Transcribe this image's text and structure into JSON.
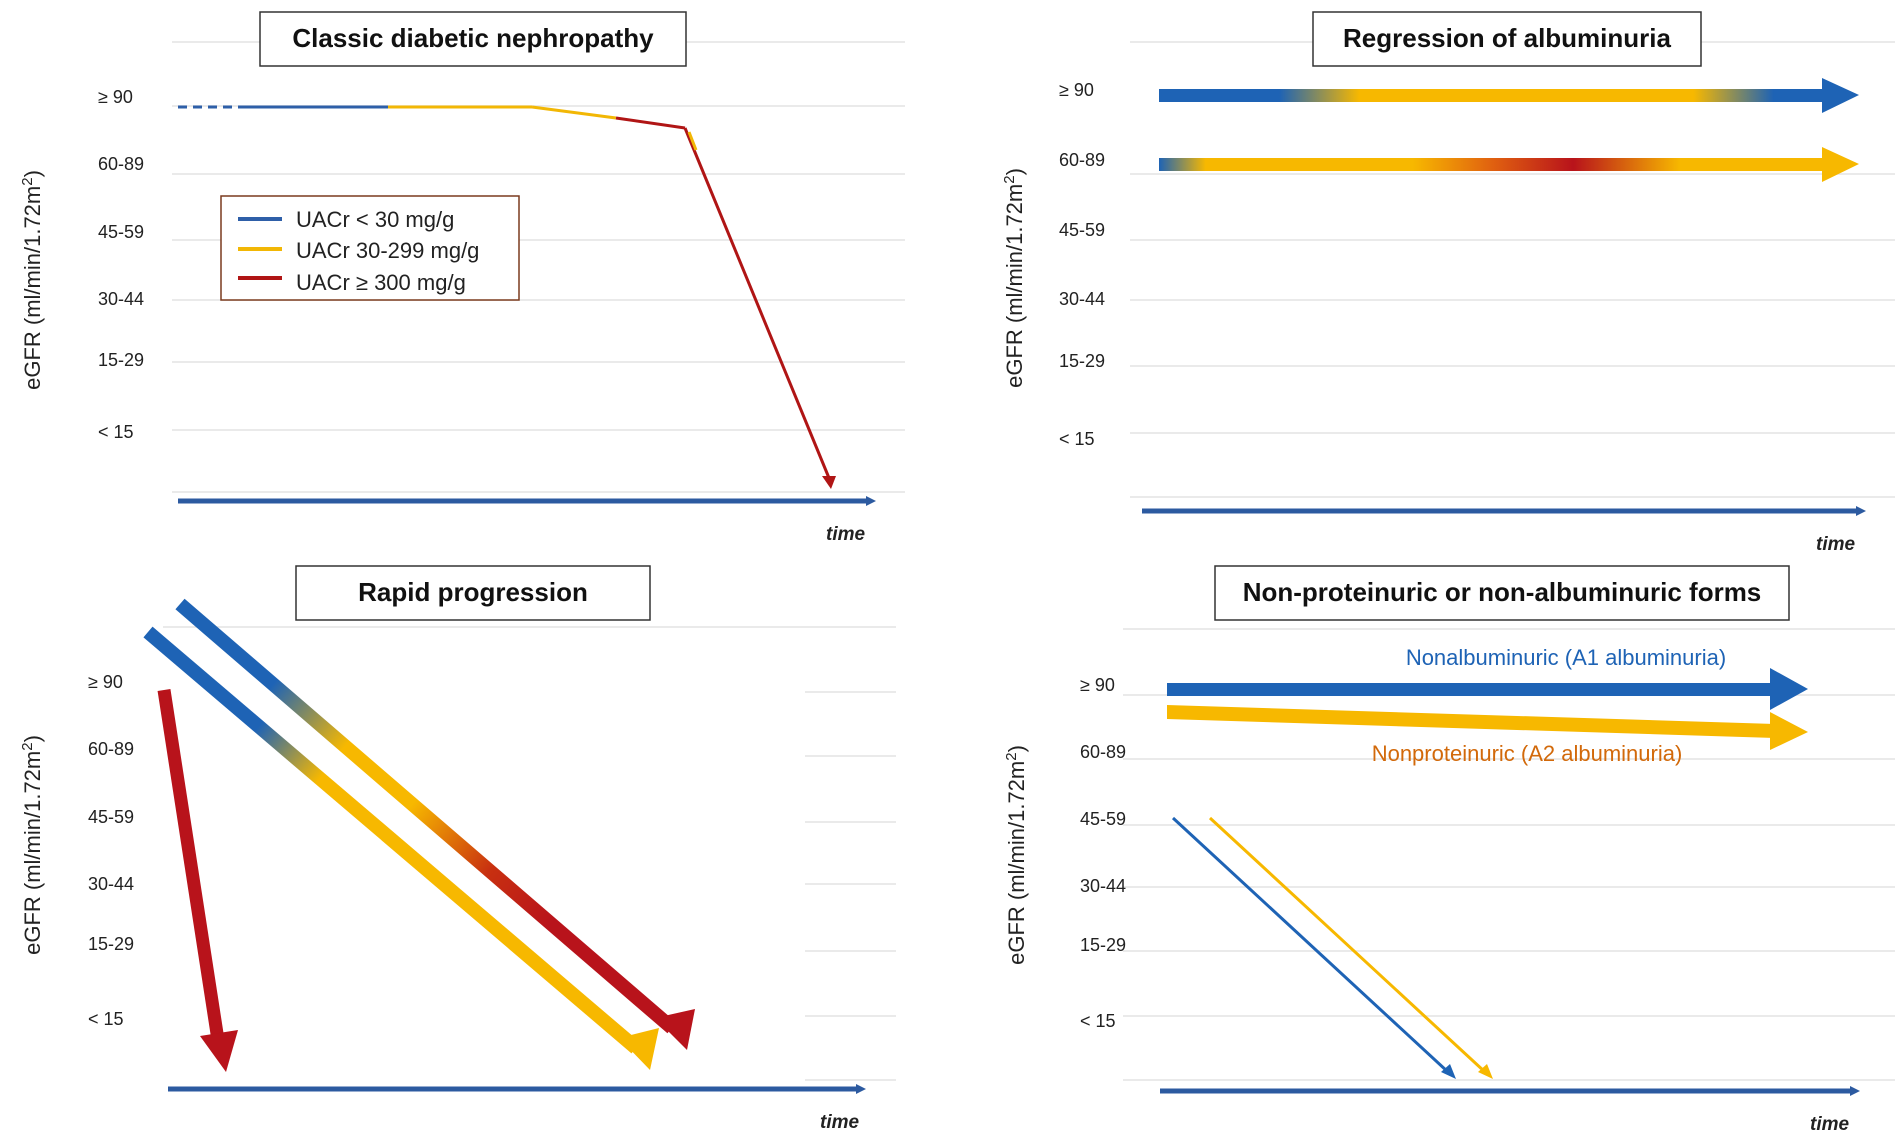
{
  "panels": {
    "classic": {
      "title": "Classic diabetic nephropathy"
    },
    "regression": {
      "title": "Regression of albuminuria"
    },
    "rapid": {
      "title": "Rapid progression"
    },
    "nonprot": {
      "title": "Non-proteinuric or non-albuminuric forms",
      "label_blue": "Nonalbuminuric (A1 albuminuria)",
      "label_orange": "Nonproteinuric (A2 albuminuria)"
    }
  },
  "axis": {
    "ylabel_main": "eGFR (ml/min/1.72m",
    "ylabel_sup": "2",
    "ylabel_close": ")",
    "ticks": [
      "≥ 90",
      "60-89",
      "45-59",
      "30-44",
      "15-29",
      "< 15"
    ],
    "time_label": "time"
  },
  "legend": {
    "items": [
      {
        "label": "UACr < 30 mg/g",
        "color": "#2e5fa8"
      },
      {
        "label": "UACr 30-299 mg/g",
        "color": "#f2b705"
      },
      {
        "label": "UACr ≥ 300 mg/g",
        "color": "#b01515"
      }
    ]
  },
  "colors": {
    "blue": "#1e63b5",
    "yellow": "#f7b800",
    "red": "#b8131b",
    "axis": "#2c5aa0"
  }
}
